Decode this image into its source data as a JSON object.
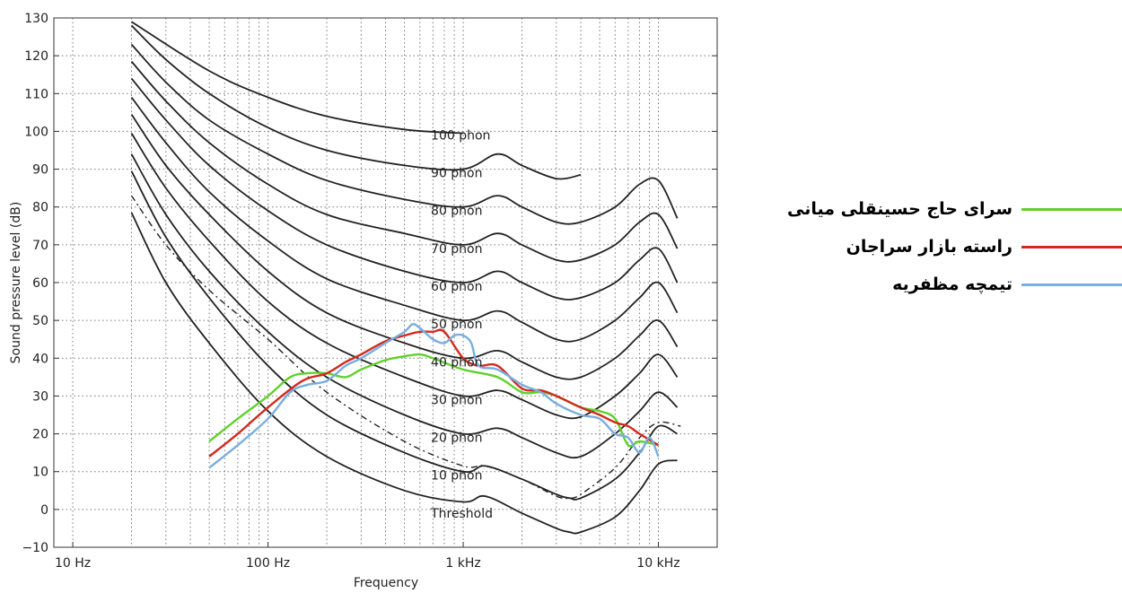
{
  "chart_data": {
    "type": "line",
    "xlabel": "Frequency",
    "ylabel": "Sound pressure level (dB)",
    "xscale": "log",
    "xlim": [
      8,
      20000
    ],
    "ylim": [
      -10,
      130
    ],
    "grid": true,
    "legend_position": "right",
    "x_ticks": [
      {
        "value": 10,
        "label": "10 Hz"
      },
      {
        "value": 100,
        "label": "100 Hz"
      },
      {
        "value": 1000,
        "label": "1 kHz"
      },
      {
        "value": 10000,
        "label": "10 kHz"
      }
    ],
    "y_ticks": [
      {
        "value": -10,
        "label": "−10"
      },
      {
        "value": 0,
        "label": "0"
      },
      {
        "value": 10,
        "label": "10"
      },
      {
        "value": 20,
        "label": "20"
      },
      {
        "value": 30,
        "label": "30"
      },
      {
        "value": 40,
        "label": "40"
      },
      {
        "value": 50,
        "label": "50"
      },
      {
        "value": 60,
        "label": "60"
      },
      {
        "value": 70,
        "label": "70"
      },
      {
        "value": 80,
        "label": "80"
      },
      {
        "value": 90,
        "label": "90"
      },
      {
        "value": 100,
        "label": "100"
      },
      {
        "value": 110,
        "label": "110"
      },
      {
        "value": 120,
        "label": "120"
      },
      {
        "value": 130,
        "label": "130"
      }
    ],
    "contours": [
      {
        "label": "Threshold",
        "label_at": [
          1000,
          0
        ],
        "values": [
          [
            20,
            78.5
          ],
          [
            30,
            60
          ],
          [
            50,
            44
          ],
          [
            100,
            26
          ],
          [
            200,
            14
          ],
          [
            500,
            5
          ],
          [
            1000,
            2
          ],
          [
            1300,
            3.5
          ],
          [
            2000,
            -1
          ],
          [
            3000,
            -5
          ],
          [
            3500,
            -6
          ],
          [
            4000,
            -6
          ],
          [
            6000,
            -2
          ],
          [
            8000,
            5
          ],
          [
            10000,
            12
          ],
          [
            12500,
            13
          ]
        ]
      },
      {
        "label": "10 phon",
        "label_at": [
          1000,
          10
        ],
        "values": [
          [
            20,
            89.5
          ],
          [
            30,
            72
          ],
          [
            50,
            56
          ],
          [
            100,
            38
          ],
          [
            200,
            25
          ],
          [
            500,
            15
          ],
          [
            1000,
            10
          ],
          [
            1300,
            11.5
          ],
          [
            2000,
            8
          ],
          [
            3000,
            4
          ],
          [
            3500,
            3
          ],
          [
            4000,
            3
          ],
          [
            6000,
            8
          ],
          [
            8000,
            15
          ],
          [
            10000,
            22
          ],
          [
            12500,
            20
          ]
        ]
      },
      {
        "label": "20 phon",
        "label_at": [
          1000,
          20
        ],
        "values": [
          [
            20,
            94
          ],
          [
            30,
            78
          ],
          [
            50,
            63
          ],
          [
            100,
            47
          ],
          [
            200,
            35
          ],
          [
            500,
            25
          ],
          [
            1000,
            20
          ],
          [
            1500,
            21.5
          ],
          [
            2000,
            19
          ],
          [
            3000,
            15
          ],
          [
            4000,
            14
          ],
          [
            6000,
            20
          ],
          [
            8000,
            26
          ],
          [
            10000,
            31
          ],
          [
            12500,
            27
          ]
        ]
      },
      {
        "label": "30 phon",
        "label_at": [
          1000,
          30
        ],
        "values": [
          [
            20,
            99.5
          ],
          [
            30,
            85
          ],
          [
            50,
            71
          ],
          [
            100,
            55
          ],
          [
            200,
            44
          ],
          [
            500,
            35
          ],
          [
            1000,
            30
          ],
          [
            1500,
            31.5
          ],
          [
            2000,
            29
          ],
          [
            3000,
            25
          ],
          [
            4000,
            24.5
          ],
          [
            6000,
            30
          ],
          [
            8000,
            36
          ],
          [
            10000,
            41
          ],
          [
            12500,
            35
          ]
        ]
      },
      {
        "label": "40 phon",
        "label_at": [
          1000,
          40
        ],
        "values": [
          [
            20,
            104.5
          ],
          [
            30,
            91
          ],
          [
            50,
            78
          ],
          [
            100,
            63
          ],
          [
            200,
            52
          ],
          [
            500,
            44
          ],
          [
            1000,
            40
          ],
          [
            1500,
            42
          ],
          [
            2000,
            39
          ],
          [
            3000,
            35
          ],
          [
            4000,
            35
          ],
          [
            6000,
            40
          ],
          [
            8000,
            46
          ],
          [
            10000,
            50
          ],
          [
            12500,
            43
          ]
        ]
      },
      {
        "label": "50 phon",
        "label_at": [
          1000,
          50
        ],
        "values": [
          [
            20,
            109
          ],
          [
            30,
            97
          ],
          [
            50,
            84
          ],
          [
            100,
            71
          ],
          [
            200,
            61
          ],
          [
            500,
            54
          ],
          [
            1000,
            50
          ],
          [
            1500,
            52.5
          ],
          [
            2000,
            49.5
          ],
          [
            3000,
            45
          ],
          [
            4000,
            45
          ],
          [
            6000,
            50
          ],
          [
            8000,
            56
          ],
          [
            10000,
            60
          ],
          [
            12500,
            52
          ]
        ]
      },
      {
        "label": "60 phon",
        "label_at": [
          1000,
          60
        ],
        "values": [
          [
            20,
            114
          ],
          [
            30,
            103
          ],
          [
            50,
            91
          ],
          [
            100,
            79
          ],
          [
            200,
            70
          ],
          [
            500,
            63
          ],
          [
            1000,
            60
          ],
          [
            1500,
            63
          ],
          [
            2000,
            60
          ],
          [
            3000,
            56
          ],
          [
            4000,
            56
          ],
          [
            6000,
            60
          ],
          [
            8000,
            66
          ],
          [
            10000,
            69
          ],
          [
            12500,
            60
          ]
        ]
      },
      {
        "label": "70 phon",
        "label_at": [
          1000,
          70
        ],
        "values": [
          [
            20,
            118.5
          ],
          [
            30,
            108
          ],
          [
            50,
            97
          ],
          [
            100,
            86
          ],
          [
            200,
            78
          ],
          [
            500,
            73
          ],
          [
            1000,
            70
          ],
          [
            1500,
            73
          ],
          [
            2000,
            70
          ],
          [
            3000,
            66
          ],
          [
            4000,
            66
          ],
          [
            6000,
            70
          ],
          [
            8000,
            76
          ],
          [
            10000,
            78
          ],
          [
            12500,
            69
          ]
        ]
      },
      {
        "label": "80 phon",
        "label_at": [
          1000,
          80
        ],
        "values": [
          [
            20,
            123
          ],
          [
            30,
            113
          ],
          [
            50,
            103
          ],
          [
            100,
            94
          ],
          [
            200,
            87
          ],
          [
            500,
            82
          ],
          [
            1000,
            80
          ],
          [
            1500,
            83
          ],
          [
            2000,
            80
          ],
          [
            3000,
            76
          ],
          [
            4000,
            76
          ],
          [
            6000,
            80
          ],
          [
            8000,
            86
          ],
          [
            10000,
            87
          ],
          [
            12500,
            77
          ]
        ]
      },
      {
        "label": "90 phon",
        "label_at": [
          1000,
          90
        ],
        "values": [
          [
            20,
            128
          ],
          [
            30,
            119
          ],
          [
            50,
            110
          ],
          [
            100,
            101
          ],
          [
            200,
            95
          ],
          [
            500,
            91
          ],
          [
            1000,
            90
          ],
          [
            1500,
            94
          ],
          [
            2000,
            91
          ],
          [
            3000,
            87.5
          ],
          [
            4000,
            88.5
          ]
        ]
      },
      {
        "label": "100 phon",
        "label_at": [
          1000,
          100
        ],
        "values": [
          [
            20,
            129
          ],
          [
            50,
            116
          ],
          [
            100,
            109
          ],
          [
            200,
            104
          ],
          [
            500,
            100.5
          ],
          [
            1000,
            99.5
          ]
        ]
      }
    ],
    "dashed_curve": {
      "values": [
        [
          20,
          83
        ],
        [
          30,
          70
        ],
        [
          50,
          58
        ],
        [
          100,
          45
        ],
        [
          200,
          31
        ],
        [
          500,
          18
        ],
        [
          1000,
          11.5
        ],
        [
          1300,
          11.5
        ],
        [
          2000,
          8
        ],
        [
          3000,
          3.5
        ],
        [
          3500,
          3
        ],
        [
          4000,
          4
        ],
        [
          6000,
          11
        ],
        [
          8000,
          19
        ],
        [
          10000,
          23
        ],
        [
          13000,
          22
        ]
      ]
    },
    "series": [
      {
        "name": "سرای حاج حسینقلی میانی",
        "color": "#5fd12a",
        "values": [
          [
            50,
            18
          ],
          [
            70,
            24
          ],
          [
            100,
            30
          ],
          [
            130,
            35
          ],
          [
            160,
            36
          ],
          [
            200,
            36
          ],
          [
            250,
            35
          ],
          [
            300,
            37
          ],
          [
            400,
            39.5
          ],
          [
            500,
            40.5
          ],
          [
            600,
            41
          ],
          [
            700,
            40
          ],
          [
            1000,
            37
          ],
          [
            1500,
            35
          ],
          [
            2000,
            31
          ],
          [
            2500,
            31
          ],
          [
            3000,
            30
          ],
          [
            4000,
            27
          ],
          [
            5000,
            26
          ],
          [
            6000,
            24
          ],
          [
            7000,
            17
          ],
          [
            8000,
            18
          ],
          [
            10000,
            17
          ]
        ]
      },
      {
        "name": "راسته بازار سراجان",
        "color": "#d22a1f",
        "values": [
          [
            50,
            14
          ],
          [
            70,
            20
          ],
          [
            100,
            27
          ],
          [
            150,
            34
          ],
          [
            200,
            36
          ],
          [
            250,
            39
          ],
          [
            300,
            41
          ],
          [
            400,
            44.5
          ],
          [
            500,
            46
          ],
          [
            600,
            47
          ],
          [
            700,
            47
          ],
          [
            800,
            47
          ],
          [
            1000,
            40
          ],
          [
            1200,
            38
          ],
          [
            1500,
            38
          ],
          [
            2000,
            32
          ],
          [
            2500,
            31.5
          ],
          [
            3000,
            30
          ],
          [
            4000,
            27
          ],
          [
            5000,
            25
          ],
          [
            6000,
            23
          ],
          [
            7000,
            22
          ],
          [
            8000,
            20
          ],
          [
            10000,
            17
          ]
        ]
      },
      {
        "name": "تیمچه مظفریه",
        "color": "#78aee0",
        "values": [
          [
            50,
            11
          ],
          [
            70,
            17
          ],
          [
            100,
            24
          ],
          [
            130,
            31
          ],
          [
            160,
            33
          ],
          [
            200,
            34
          ],
          [
            250,
            38
          ],
          [
            300,
            40
          ],
          [
            400,
            44
          ],
          [
            500,
            47
          ],
          [
            550,
            49
          ],
          [
            600,
            48
          ],
          [
            700,
            45
          ],
          [
            800,
            44
          ],
          [
            900,
            46
          ],
          [
            1000,
            46
          ],
          [
            1100,
            44
          ],
          [
            1200,
            38
          ],
          [
            1500,
            37
          ],
          [
            2000,
            33
          ],
          [
            2500,
            31
          ],
          [
            3000,
            28
          ],
          [
            4000,
            25
          ],
          [
            5000,
            24
          ],
          [
            6000,
            20
          ],
          [
            7000,
            19
          ],
          [
            8000,
            15
          ],
          [
            9000,
            19
          ],
          [
            10000,
            14
          ]
        ]
      }
    ]
  }
}
